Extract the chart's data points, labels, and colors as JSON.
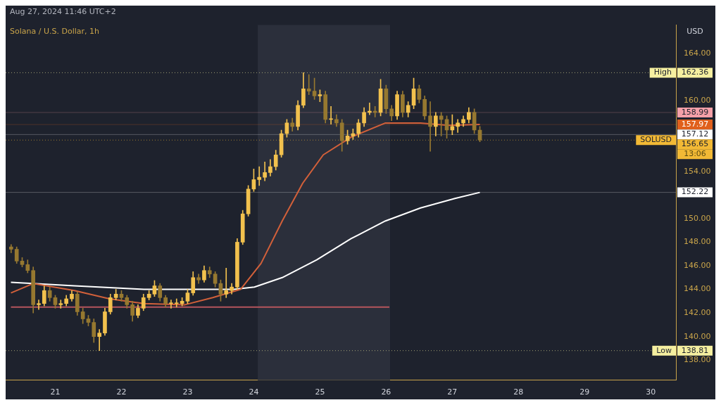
{
  "chart_data": {
    "type": "candlestick",
    "title": "Solana / U.S. Dollar, 1h",
    "ylabel": "USD",
    "annotations": [
      "Aug 27, 2024 11:46 UTC+2",
      "High",
      "Low",
      "SOLUSD",
      "13:06"
    ],
    "x": [
      20.333,
      20.417,
      20.5,
      20.583,
      20.667,
      20.75,
      20.833,
      20.917,
      21,
      21.083,
      21.167,
      21.25,
      21.333,
      21.417,
      21.5,
      21.583,
      21.667,
      21.75,
      21.833,
      21.917,
      22,
      22.083,
      22.167,
      22.25,
      22.333,
      22.417,
      22.5,
      22.583,
      22.667,
      22.75,
      22.833,
      22.917,
      23,
      23.083,
      23.167,
      23.25,
      23.333,
      23.417,
      23.5,
      23.583,
      23.667,
      23.75,
      23.833,
      23.917,
      24,
      24.083,
      24.167,
      24.25,
      24.333,
      24.417,
      24.5,
      24.583,
      24.667,
      24.75,
      24.833,
      24.917,
      25,
      25.083,
      25.167,
      25.25,
      25.333,
      25.417,
      25.5,
      25.583,
      25.667,
      25.75,
      25.833,
      25.917,
      26,
      26.083,
      26.167,
      26.25,
      26.333,
      26.417,
      26.5,
      26.583,
      26.667,
      26.75,
      26.833,
      26.917,
      27,
      27.083,
      27.167,
      27.25,
      27.333,
      27.417
    ],
    "ohlc": [
      [
        147.6,
        147.8,
        147.1,
        147.4
      ],
      [
        147.4,
        147.6,
        146.2,
        146.4
      ],
      [
        146.4,
        146.7,
        145.9,
        146.1
      ],
      [
        146.1,
        146.5,
        145.4,
        145.6
      ],
      [
        145.6,
        145.9,
        142.0,
        142.7
      ],
      [
        142.7,
        143.1,
        142.3,
        142.8
      ],
      [
        142.8,
        144.3,
        142.6,
        143.9
      ],
      [
        143.9,
        144.2,
        143.0,
        143.3
      ],
      [
        143.3,
        143.5,
        142.4,
        142.7
      ],
      [
        142.7,
        143.1,
        142.4,
        142.8
      ],
      [
        142.8,
        143.5,
        142.6,
        143.2
      ],
      [
        143.2,
        143.9,
        143.0,
        143.6
      ],
      [
        143.6,
        143.8,
        141.8,
        142.1
      ],
      [
        142.1,
        142.4,
        141.1,
        141.5
      ],
      [
        141.5,
        141.8,
        140.9,
        141.2
      ],
      [
        141.2,
        141.5,
        139.5,
        140.0
      ],
      [
        140.0,
        140.6,
        138.81,
        140.3
      ],
      [
        140.3,
        142.4,
        140.1,
        142.1
      ],
      [
        142.1,
        143.6,
        141.9,
        143.3
      ],
      [
        143.3,
        144.0,
        143.1,
        143.6
      ],
      [
        143.6,
        143.9,
        143.0,
        143.3
      ],
      [
        143.3,
        143.5,
        142.4,
        142.7
      ],
      [
        142.7,
        143.0,
        141.3,
        141.8
      ],
      [
        141.8,
        142.7,
        141.6,
        142.4
      ],
      [
        142.4,
        143.6,
        142.2,
        143.3
      ],
      [
        143.3,
        143.9,
        143.1,
        143.6
      ],
      [
        143.6,
        144.75,
        143.4,
        144.3
      ],
      [
        144.3,
        144.5,
        143.0,
        143.3
      ],
      [
        143.3,
        143.5,
        142.5,
        142.8
      ],
      [
        142.8,
        143.1,
        142.4,
        142.8
      ],
      [
        142.8,
        143.2,
        142.5,
        142.8
      ],
      [
        142.8,
        143.3,
        142.6,
        143.0
      ],
      [
        143.0,
        144.0,
        142.8,
        143.7
      ],
      [
        143.7,
        145.5,
        143.5,
        145.0
      ],
      [
        145.0,
        145.3,
        144.5,
        144.8
      ],
      [
        144.8,
        146.0,
        144.6,
        145.6
      ],
      [
        145.6,
        145.9,
        145.0,
        145.3
      ],
      [
        145.3,
        145.5,
        144.2,
        144.5
      ],
      [
        144.5,
        144.8,
        143.0,
        143.6
      ],
      [
        143.6,
        145.8,
        143.3,
        143.9
      ],
      [
        143.9,
        144.5,
        143.6,
        144.2
      ],
      [
        144.2,
        148.3,
        144.0,
        148.0
      ],
      [
        148.0,
        150.7,
        147.8,
        150.4
      ],
      [
        150.4,
        152.8,
        150.2,
        152.5
      ],
      [
        152.5,
        154.2,
        152.3,
        153.3
      ],
      [
        153.3,
        154.4,
        152.8,
        153.5
      ],
      [
        153.5,
        154.8,
        153.2,
        153.9
      ],
      [
        153.9,
        155.0,
        153.6,
        154.4
      ],
      [
        154.4,
        155.8,
        154.1,
        155.4
      ],
      [
        155.4,
        157.5,
        155.2,
        157.2
      ],
      [
        157.2,
        158.4,
        156.9,
        158.1
      ],
      [
        158.1,
        158.5,
        157.4,
        157.8
      ],
      [
        157.8,
        160.0,
        157.5,
        159.6
      ],
      [
        159.6,
        162.36,
        159.4,
        161.0
      ],
      [
        161.0,
        162.2,
        160.5,
        160.8
      ],
      [
        160.8,
        161.9,
        160.1,
        160.4
      ],
      [
        160.4,
        160.9,
        159.9,
        160.5
      ],
      [
        160.5,
        160.8,
        158.1,
        158.4
      ],
      [
        158.4,
        159.5,
        158.0,
        158.4
      ],
      [
        158.4,
        158.8,
        157.8,
        158.1
      ],
      [
        158.1,
        158.4,
        155.7,
        156.6
      ],
      [
        156.6,
        157.5,
        156.3,
        157.0
      ],
      [
        157.0,
        157.6,
        156.7,
        157.2
      ],
      [
        157.2,
        158.4,
        156.9,
        158.1
      ],
      [
        158.1,
        159.4,
        157.8,
        159.0
      ],
      [
        159.0,
        159.8,
        158.8,
        159.1
      ],
      [
        159.1,
        159.5,
        158.6,
        159.0
      ],
      [
        159.0,
        161.8,
        158.7,
        161.0
      ],
      [
        161.0,
        161.3,
        158.9,
        159.3
      ],
      [
        159.3,
        159.6,
        158.3,
        158.7
      ],
      [
        158.7,
        160.8,
        158.4,
        160.5
      ],
      [
        160.5,
        160.8,
        158.6,
        159.0
      ],
      [
        159.0,
        159.9,
        158.6,
        159.6
      ],
      [
        159.6,
        161.9,
        159.3,
        161.0
      ],
      [
        161.0,
        161.3,
        159.8,
        160.1
      ],
      [
        160.1,
        160.4,
        158.4,
        158.7
      ],
      [
        158.7,
        159.9,
        155.7,
        157.8
      ],
      [
        157.8,
        159.0,
        157.0,
        158.7
      ],
      [
        158.7,
        159.0,
        157.0,
        158.4
      ],
      [
        158.4,
        158.7,
        156.8,
        157.5
      ],
      [
        157.5,
        158.8,
        157.1,
        157.8
      ],
      [
        157.8,
        158.4,
        157.3,
        158.1
      ],
      [
        158.1,
        158.7,
        157.8,
        158.4
      ],
      [
        158.4,
        159.4,
        158.1,
        159.0
      ],
      [
        159.0,
        159.3,
        157.2,
        157.5
      ],
      [
        157.5,
        157.8,
        156.5,
        156.65
      ]
    ],
    "colors": [
      "#967830",
      "#967830",
      "#967830",
      "#967830",
      "#967830",
      "#f2c14e",
      "#f2c14e",
      "#967830",
      "#967830",
      "#f2c14e",
      "#f2c14e",
      "#f2c14e",
      "#967830",
      "#967830",
      "#967830",
      "#967830",
      "#f2c14e",
      "#f2c14e",
      "#f2c14e",
      "#f2c14e",
      "#967830",
      "#967830",
      "#967830",
      "#f2c14e",
      "#f2c14e",
      "#f2c14e",
      "#f2c14e",
      "#967830",
      "#967830",
      "#f2c14e",
      "#f2c14e",
      "#f2c14e",
      "#f2c14e",
      "#f2c14e",
      "#967830",
      "#f2c14e",
      "#967830",
      "#967830",
      "#967830",
      "#f2c14e",
      "#f2c14e",
      "#f2c14e",
      "#f2c14e",
      "#f2c14e",
      "#f2c14e",
      "#f2c14e",
      "#f2c14e",
      "#f2c14e",
      "#f2c14e",
      "#f2c14e",
      "#f2c14e",
      "#967830",
      "#f2c14e",
      "#f2c14e",
      "#967830",
      "#967830",
      "#f2c14e",
      "#967830",
      "#f2c14e",
      "#967830",
      "#967830",
      "#f2c14e",
      "#f2c14e",
      "#f2c14e",
      "#f2c14e",
      "#f2c14e",
      "#967830",
      "#f2c14e",
      "#967830",
      "#967830",
      "#f2c14e",
      "#967830",
      "#f2c14e",
      "#f2c14e",
      "#967830",
      "#967830",
      "#967830",
      "#f2c14e",
      "#967830",
      "#967830",
      "#f2c14e",
      "#f2c14e",
      "#f2c14e",
      "#f2c14e",
      "#967830",
      "#967830"
    ],
    "series": [
      {
        "type": "line",
        "color": "#d2603a",
        "x": [
          20.33,
          20.67,
          21.29,
          21.82,
          22.34,
          22.96,
          23.38,
          23.8,
          24.11,
          24.43,
          24.74,
          25.05,
          25.47,
          25.99,
          26.52,
          26.94,
          27.417
        ],
        "values": [
          143.7,
          144.5,
          143.9,
          143.2,
          142.8,
          142.7,
          143.3,
          144.0,
          146.2,
          149.8,
          153.0,
          155.4,
          156.9,
          158.1,
          158.1,
          157.9,
          157.97
        ]
      },
      {
        "type": "line",
        "color": "#ffffff",
        "x": [
          20.33,
          21.29,
          22.34,
          23.7,
          24.01,
          24.43,
          24.95,
          25.47,
          25.99,
          26.52,
          27.04,
          27.417
        ],
        "values": [
          144.6,
          144.3,
          144.0,
          144.0,
          144.2,
          145.0,
          146.5,
          148.3,
          149.8,
          150.9,
          151.7,
          152.22
        ]
      },
      {
        "type": "line",
        "color": "#b5555c",
        "x": [
          20.33,
          26.05
        ],
        "values": [
          142.5,
          142.5
        ]
      }
    ],
    "bands": [
      {
        "axis": "x",
        "from": 24.06,
        "to": 26.06,
        "color": "#2b2f3b"
      }
    ],
    "ref_lines": [
      {
        "axis": "y",
        "value": 162.36,
        "label": "162.36",
        "color": "#f5efa0",
        "line_style": "dotted"
      },
      {
        "axis": "y",
        "value": 138.81,
        "label": "138.81",
        "color": "#f5efa0",
        "line_style": "dotted"
      },
      {
        "axis": "y",
        "value": 158.99,
        "label": "158.99",
        "color": "#f4a0a8"
      },
      {
        "axis": "y",
        "value": 157.97,
        "label": "157.97",
        "color": "#e0601c"
      },
      {
        "axis": "y",
        "value": 157.12,
        "label": "157.12",
        "color": "#ffffff"
      },
      {
        "axis": "y",
        "value": 156.65,
        "label": "156.65",
        "color": "#f2b935",
        "line_style": "dotted"
      },
      {
        "axis": "y",
        "value": 152.22,
        "label": "152.22",
        "color": "#ffffff"
      }
    ],
    "xlim": [
      20.25,
      30.38
    ],
    "ylim": [
      136.3,
      166.4
    ],
    "xticks": [
      21,
      22,
      23,
      24,
      25,
      26,
      27,
      28,
      29,
      30
    ],
    "yticks": [
      {
        "value": 138,
        "label": "138.00"
      },
      {
        "value": 140,
        "label": "140.00"
      },
      {
        "value": 142,
        "label": "142.00"
      },
      {
        "value": 144,
        "label": "144.00"
      },
      {
        "value": 146,
        "label": "146.00"
      },
      {
        "value": 148,
        "label": "148.00"
      },
      {
        "value": 150,
        "label": "150.00"
      },
      {
        "value": 154,
        "label": "154.00"
      },
      {
        "value": 160,
        "label": "160.00"
      },
      {
        "value": 164,
        "label": "164.00"
      }
    ],
    "grid": false,
    "legend": false
  }
}
